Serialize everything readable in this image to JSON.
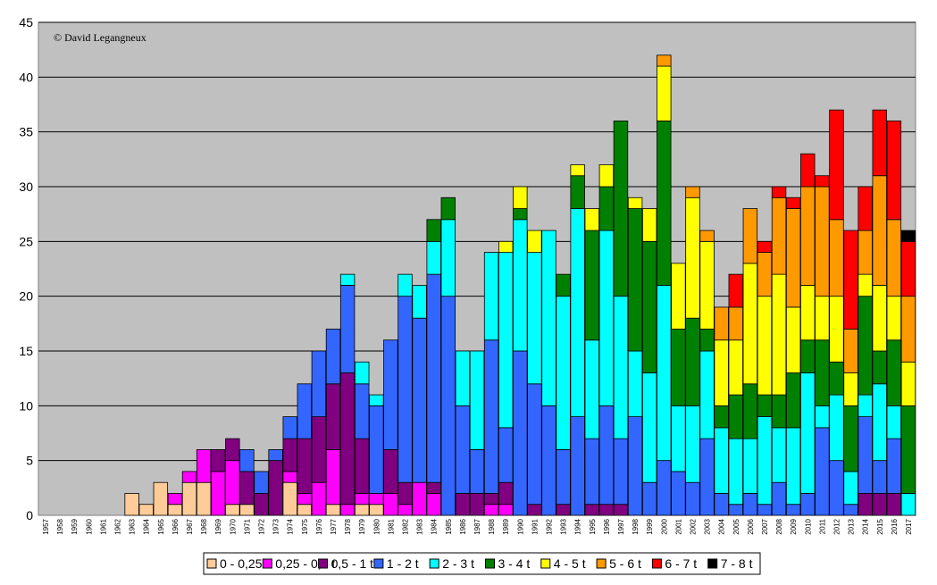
{
  "chart_data": {
    "type": "bar",
    "stacked": true,
    "credit": "© David Legangneux",
    "ylim": [
      0,
      45
    ],
    "yticks": [
      0,
      5,
      10,
      15,
      20,
      25,
      30,
      35,
      40,
      45
    ],
    "grid": true,
    "plot_background": "#c0c0c0",
    "legend_position": "bottom",
    "categories": [
      "1957",
      "1958",
      "1959",
      "1960",
      "1961",
      "1962",
      "1963",
      "1964",
      "1965",
      "1966",
      "1967",
      "1968",
      "1969",
      "1970",
      "1971",
      "1972",
      "1973",
      "1974",
      "1975",
      "1976",
      "1977",
      "1978",
      "1979",
      "1980",
      "1981",
      "1982",
      "1983",
      "1984",
      "1985",
      "1986",
      "1987",
      "1988",
      "1989",
      "1990",
      "1991",
      "1992",
      "1993",
      "1994",
      "1995",
      "1996",
      "1997",
      "1998",
      "1999",
      "2000",
      "2001",
      "2002",
      "2003",
      "2004",
      "2005",
      "2006",
      "2007",
      "2008",
      "2009",
      "2010",
      "2011",
      "2012",
      "2013",
      "2014",
      "2015",
      "2016",
      "2017"
    ],
    "series": [
      {
        "name": "0 - 0,25 t",
        "color": "#ffcc99",
        "values": [
          0,
          0,
          0,
          0,
          0,
          0,
          2,
          1,
          3,
          1,
          3,
          3,
          0,
          1,
          1,
          0,
          0,
          3,
          1,
          0,
          1,
          0,
          1,
          1,
          0,
          0,
          0,
          0,
          0,
          0,
          0,
          0,
          0,
          0,
          0,
          0,
          0,
          0,
          0,
          0,
          0,
          0,
          0,
          0,
          0,
          0,
          0,
          0,
          0,
          0,
          0,
          0,
          0,
          0,
          0,
          0,
          0,
          0,
          0,
          0,
          0
        ]
      },
      {
        "name": "0,25 - 0,5 t",
        "color": "#ff00ff",
        "values": [
          0,
          0,
          0,
          0,
          0,
          0,
          0,
          0,
          0,
          1,
          1,
          3,
          4,
          4,
          0,
          0,
          0,
          1,
          1,
          3,
          5,
          1,
          1,
          1,
          2,
          1,
          3,
          2,
          0,
          0,
          0,
          1,
          1,
          0,
          0,
          0,
          0,
          0,
          0,
          0,
          0,
          0,
          0,
          0,
          0,
          0,
          0,
          0,
          0,
          0,
          0,
          0,
          0,
          0,
          0,
          0,
          0,
          0,
          0,
          0,
          0
        ]
      },
      {
        "name": "0,5 - 1 t",
        "color": "#800080",
        "values": [
          0,
          0,
          0,
          0,
          0,
          0,
          0,
          0,
          0,
          0,
          0,
          0,
          2,
          2,
          3,
          2,
          5,
          3,
          5,
          6,
          6,
          12,
          5,
          0,
          4,
          2,
          0,
          1,
          0,
          2,
          2,
          1,
          2,
          0,
          1,
          0,
          1,
          0,
          1,
          1,
          1,
          0,
          0,
          0,
          0,
          0,
          0,
          0,
          0,
          0,
          0,
          0,
          0,
          0,
          0,
          0,
          0,
          2,
          2,
          2,
          0
        ]
      },
      {
        "name": "1 - 2 t",
        "color": "#3366ff",
        "values": [
          0,
          0,
          0,
          0,
          0,
          0,
          0,
          0,
          0,
          0,
          0,
          0,
          0,
          0,
          2,
          2,
          1,
          2,
          5,
          6,
          5,
          8,
          5,
          8,
          10,
          17,
          15,
          19,
          20,
          8,
          4,
          14,
          5,
          15,
          11,
          10,
          5,
          9,
          6,
          9,
          6,
          9,
          3,
          5,
          4,
          3,
          7,
          2,
          1,
          2,
          1,
          3,
          1,
          2,
          8,
          5,
          1,
          7,
          3,
          5,
          0
        ]
      },
      {
        "name": "2 - 3 t",
        "color": "#00ffff",
        "values": [
          0,
          0,
          0,
          0,
          0,
          0,
          0,
          0,
          0,
          0,
          0,
          0,
          0,
          0,
          0,
          0,
          0,
          0,
          0,
          0,
          0,
          1,
          2,
          1,
          0,
          2,
          3,
          3,
          7,
          5,
          9,
          8,
          16,
          12,
          12,
          16,
          14,
          19,
          9,
          16,
          13,
          6,
          10,
          16,
          6,
          7,
          8,
          6,
          6,
          5,
          8,
          5,
          7,
          11,
          2,
          6,
          3,
          2,
          7,
          3,
          2
        ]
      },
      {
        "name": "3 - 4 t",
        "color": "#008000",
        "values": [
          0,
          0,
          0,
          0,
          0,
          0,
          0,
          0,
          0,
          0,
          0,
          0,
          0,
          0,
          0,
          0,
          0,
          0,
          0,
          0,
          0,
          0,
          0,
          0,
          0,
          0,
          0,
          2,
          2,
          0,
          0,
          0,
          0,
          1,
          0,
          0,
          2,
          3,
          10,
          4,
          16,
          13,
          12,
          15,
          7,
          8,
          2,
          2,
          4,
          5,
          2,
          3,
          5,
          3,
          6,
          3,
          6,
          9,
          3,
          6,
          8
        ]
      },
      {
        "name": "4 - 5 t",
        "color": "#ffff00",
        "values": [
          0,
          0,
          0,
          0,
          0,
          0,
          0,
          0,
          0,
          0,
          0,
          0,
          0,
          0,
          0,
          0,
          0,
          0,
          0,
          0,
          0,
          0,
          0,
          0,
          0,
          0,
          0,
          0,
          0,
          0,
          0,
          0,
          1,
          2,
          2,
          0,
          0,
          1,
          2,
          2,
          0,
          1,
          3,
          5,
          6,
          11,
          8,
          6,
          5,
          11,
          9,
          11,
          6,
          5,
          4,
          6,
          3,
          2,
          6,
          4,
          4
        ]
      },
      {
        "name": "5 - 6 t",
        "color": "#ff9900",
        "values": [
          0,
          0,
          0,
          0,
          0,
          0,
          0,
          0,
          0,
          0,
          0,
          0,
          0,
          0,
          0,
          0,
          0,
          0,
          0,
          0,
          0,
          0,
          0,
          0,
          0,
          0,
          0,
          0,
          0,
          0,
          0,
          0,
          0,
          0,
          0,
          0,
          0,
          0,
          0,
          0,
          0,
          0,
          0,
          1,
          0,
          1,
          1,
          3,
          3,
          5,
          4,
          7,
          9,
          9,
          10,
          7,
          4,
          4,
          10,
          7,
          6
        ]
      },
      {
        "name": "6 - 7 t",
        "color": "#ff0000",
        "values": [
          0,
          0,
          0,
          0,
          0,
          0,
          0,
          0,
          0,
          0,
          0,
          0,
          0,
          0,
          0,
          0,
          0,
          0,
          0,
          0,
          0,
          0,
          0,
          0,
          0,
          0,
          0,
          0,
          0,
          0,
          0,
          0,
          0,
          0,
          0,
          0,
          0,
          0,
          0,
          0,
          0,
          0,
          0,
          0,
          0,
          0,
          0,
          0,
          3,
          0,
          1,
          1,
          1,
          3,
          1,
          10,
          9,
          4,
          6,
          9,
          5
        ]
      },
      {
        "name": "7 - 8 t",
        "color": "#000000",
        "values": [
          0,
          0,
          0,
          0,
          0,
          0,
          0,
          0,
          0,
          0,
          0,
          0,
          0,
          0,
          0,
          0,
          0,
          0,
          0,
          0,
          0,
          0,
          0,
          0,
          0,
          0,
          0,
          0,
          0,
          0,
          0,
          0,
          0,
          0,
          0,
          0,
          0,
          0,
          0,
          0,
          0,
          0,
          0,
          0,
          0,
          0,
          0,
          0,
          0,
          0,
          0,
          0,
          0,
          0,
          0,
          0,
          0,
          0,
          0,
          0,
          1
        ]
      }
    ]
  }
}
